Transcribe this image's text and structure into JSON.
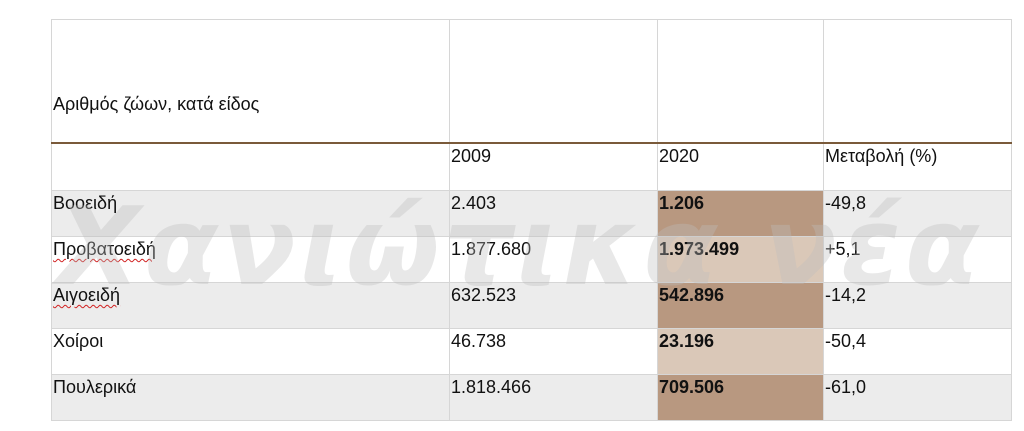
{
  "table": {
    "title": "Αριθμός ζώων, κατά είδος",
    "headers": [
      "",
      "2009",
      "2020",
      "Μεταβολή (%)"
    ],
    "rows": [
      {
        "label": "Βοοειδή",
        "y2009": "2.403",
        "y2020": "1.206",
        "change": "-49,8"
      },
      {
        "label": "Προβατοειδή",
        "y2009": "1.877.680",
        "y2020": "1.973.499",
        "change": "+5,1"
      },
      {
        "label": "Αιγοειδή",
        "y2009": "632.523",
        "y2020": "542.896",
        "change": "-14,2"
      },
      {
        "label": "Χοίροι",
        "y2009": "46.738",
        "y2020": "23.196",
        "change": "-50,4"
      },
      {
        "label": "Πουλερικά",
        "y2009": "1.818.466",
        "y2020": "709.506",
        "change": "-61,0"
      }
    ]
  },
  "watermark": {
    "text": "Χανιώτικα νέα"
  },
  "colors": {
    "header_rule": "#7a5a3a",
    "highlight_dark": "#b89880",
    "highlight_light": "#dac8b8",
    "row_shade": "#ececec"
  }
}
